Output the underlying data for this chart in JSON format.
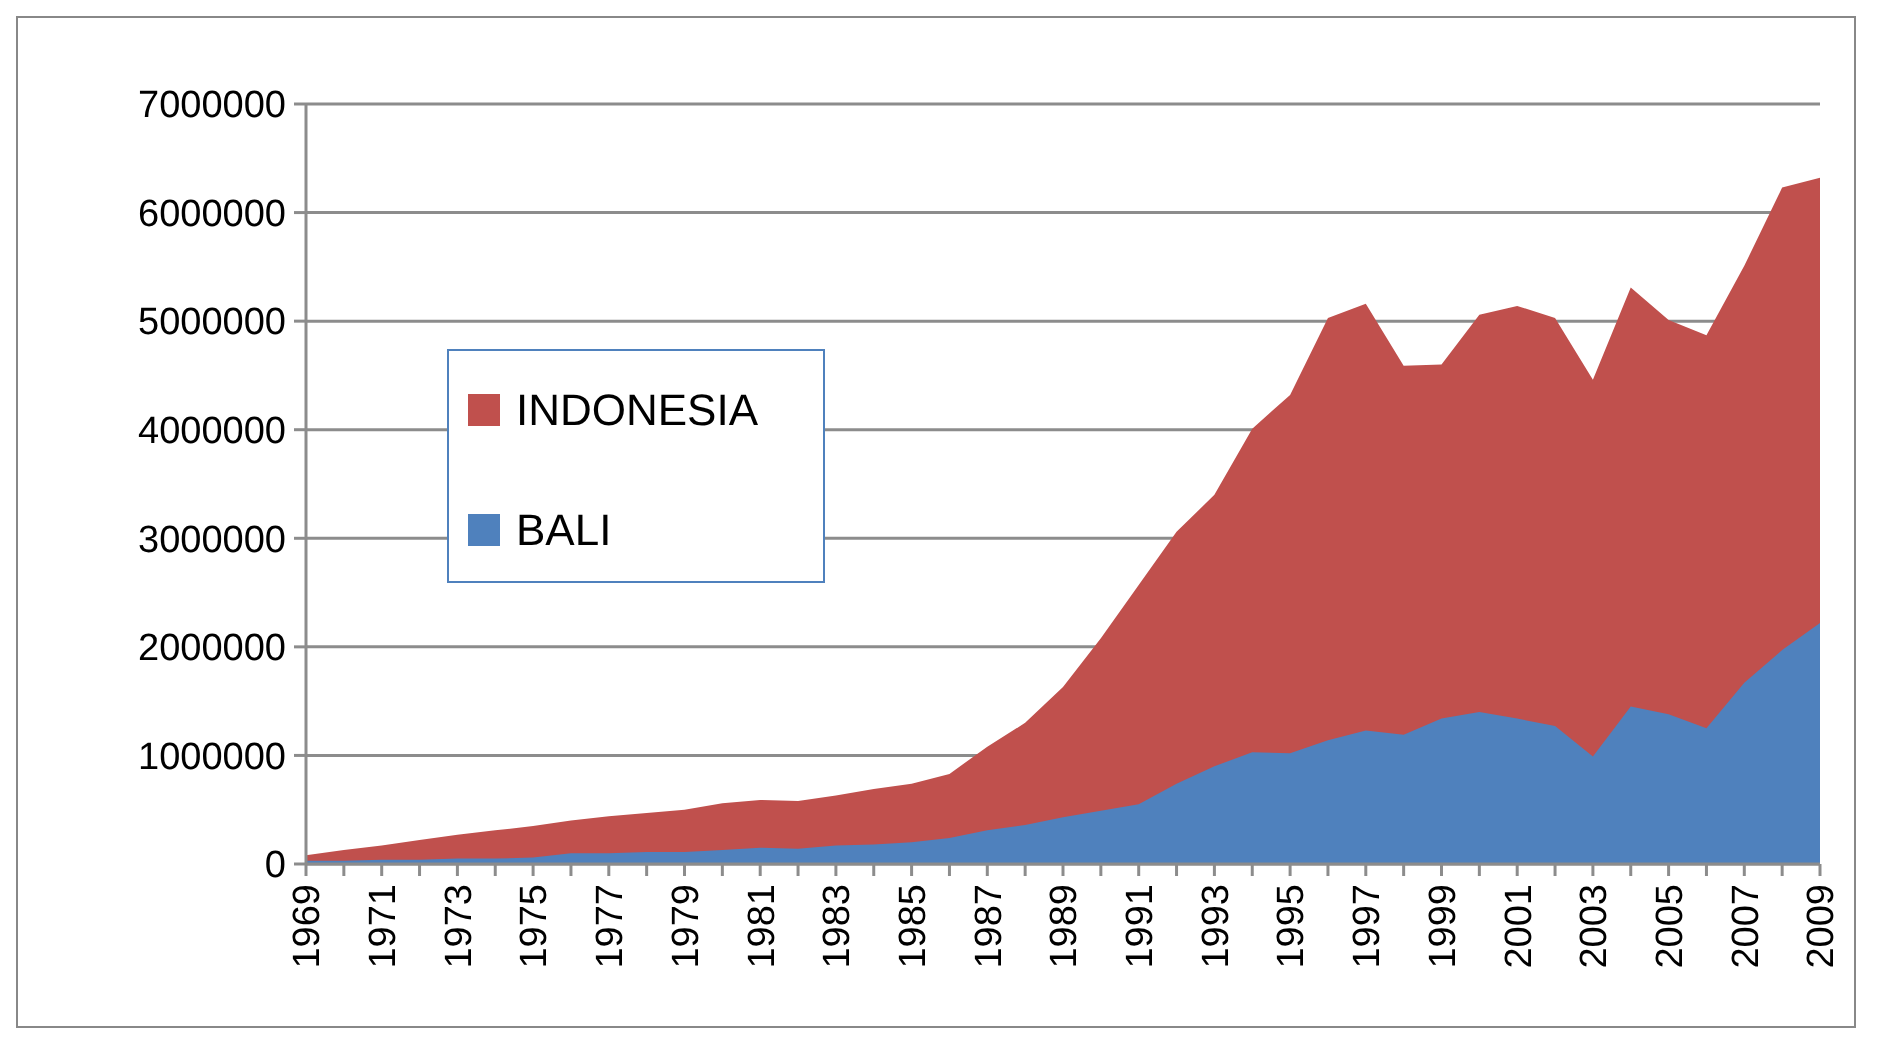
{
  "chart_data": {
    "type": "area",
    "categories": [
      "1969",
      null,
      "1971",
      null,
      "1973",
      null,
      "1975",
      null,
      "1977",
      null,
      "1979",
      null,
      "1981",
      null,
      "1983",
      null,
      "1985",
      null,
      "1987",
      null,
      "1989",
      null,
      "1991",
      null,
      "1993",
      null,
      "1995",
      null,
      "1997",
      null,
      "1999",
      null,
      "2001",
      null,
      "2003",
      null,
      "2005",
      null,
      "2007",
      null,
      "2009"
    ],
    "series": [
      {
        "name": "INDONESIA",
        "color": "#c0504d",
        "values": [
          80000,
          130000,
          170000,
          220000,
          270000,
          310000,
          350000,
          400000,
          440000,
          470000,
          500000,
          560000,
          590000,
          580000,
          630000,
          690000,
          740000,
          830000,
          1080000,
          1300000,
          1630000,
          2080000,
          2570000,
          3060000,
          3400000,
          4010000,
          4320000,
          5030000,
          5160000,
          4590000,
          4600000,
          5060000,
          5140000,
          5030000,
          4460000,
          5310000,
          5010000,
          4870000,
          5510000,
          6230000,
          6320000
        ]
      },
      {
        "name": "BALI",
        "color": "#4f81bd",
        "values": [
          30000,
          30000,
          40000,
          40000,
          50000,
          50000,
          60000,
          100000,
          100000,
          110000,
          110000,
          130000,
          150000,
          140000,
          170000,
          180000,
          200000,
          240000,
          310000,
          360000,
          430000,
          490000,
          550000,
          740000,
          900000,
          1030000,
          1020000,
          1140000,
          1230000,
          1190000,
          1340000,
          1400000,
          1340000,
          1270000,
          990000,
          1450000,
          1380000,
          1250000,
          1670000,
          1970000,
          2220000
        ]
      }
    ],
    "ylim": [
      0,
      7000000
    ],
    "yticks": [
      0,
      1000000,
      2000000,
      3000000,
      4000000,
      5000000,
      6000000,
      7000000
    ],
    "grid": "y",
    "legend": "left"
  }
}
